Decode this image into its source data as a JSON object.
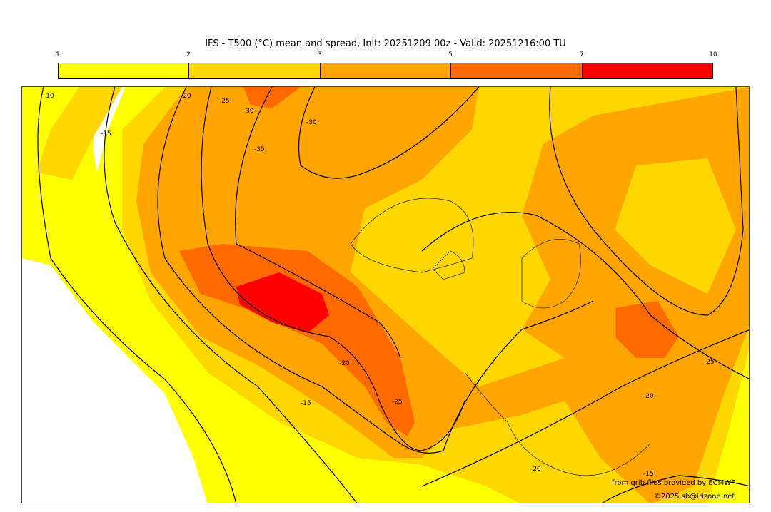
{
  "title": "IFS - T500 (°C) mean and spread, Init: 20251209 00z - Valid: 20251216:00 TU",
  "colorbar": {
    "ticks": [
      "1",
      "2",
      "3",
      "5",
      "7",
      "10"
    ],
    "colors": [
      "#ffff00",
      "#ffd700",
      "#ffa500",
      "#ff6a00",
      "#ff0000"
    ]
  },
  "contour_labels": [
    "-10",
    "-15",
    "-20",
    "-25",
    "-30",
    "-35",
    "-30",
    "-20",
    "-25",
    "-20",
    "-15",
    "-20",
    "-15",
    "-25"
  ],
  "credits": {
    "source": "from grib files provided by ECMWF",
    "copyright": "©2025 sb@irizone.net"
  }
}
